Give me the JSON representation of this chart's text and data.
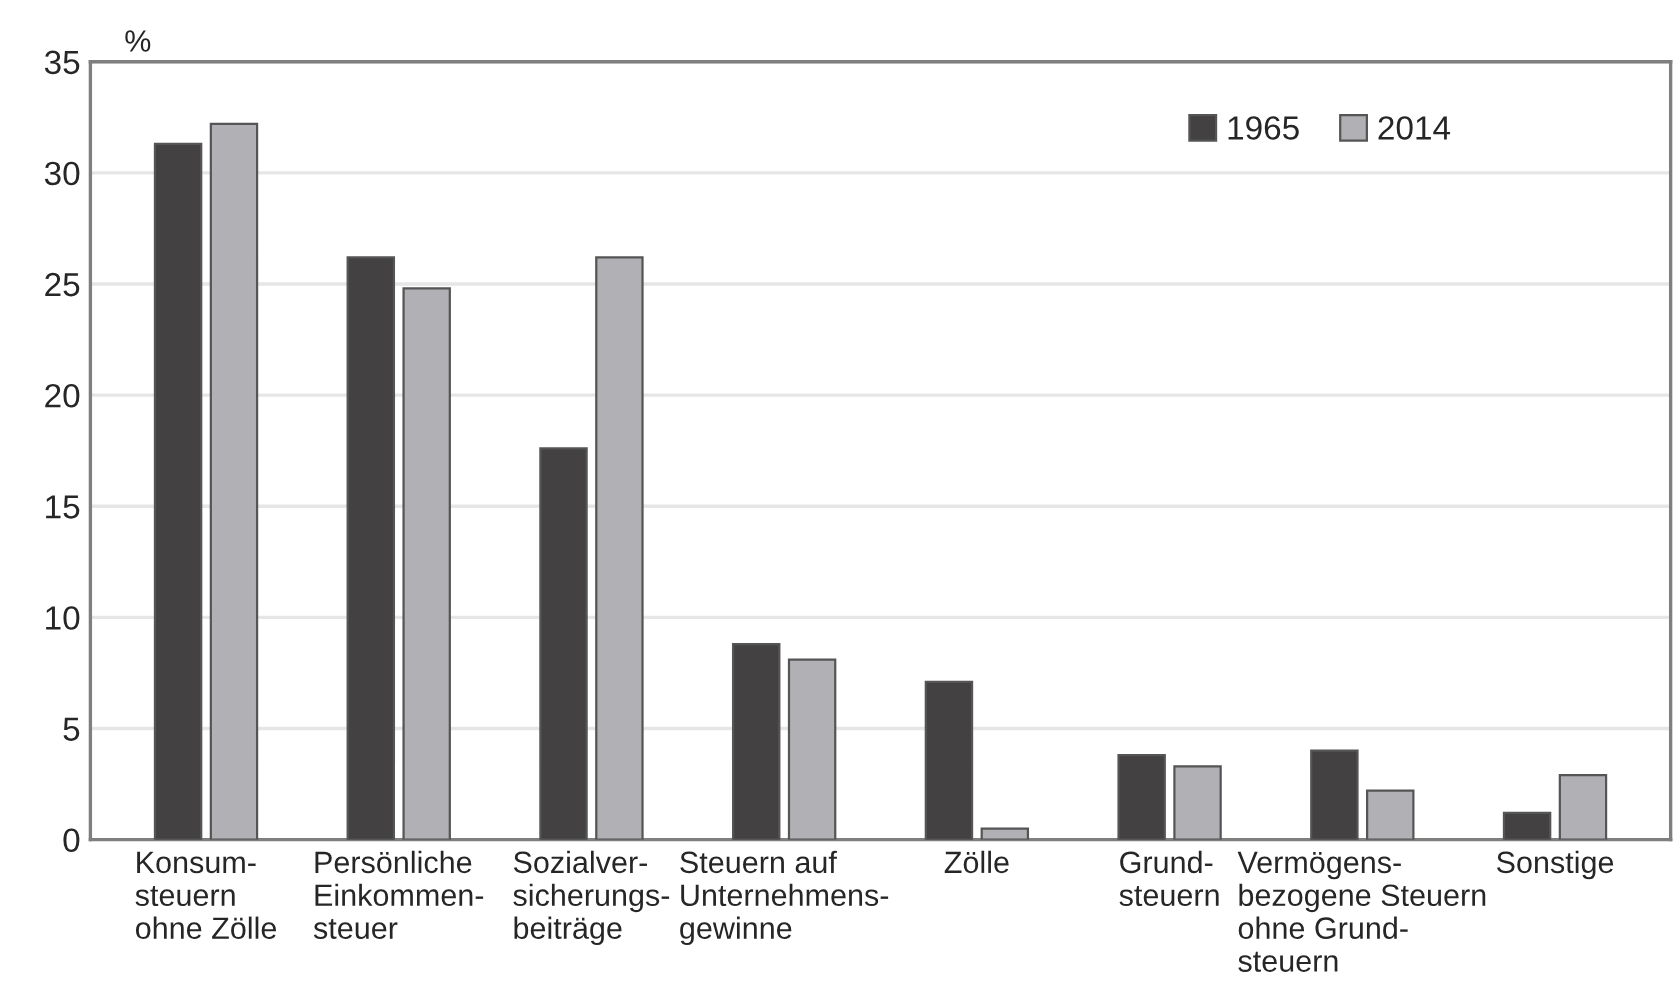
{
  "chart_data": {
    "type": "bar",
    "ylabel": "%",
    "categories": [
      "Konsum-\nsteuern\nohne Zölle",
      "Persönliche\nEinkommen-\nsteuer",
      "Sozialver-\nsicherungs-\nbeiträge",
      "Steuern auf\nUnternehmens-\ngewinne",
      "Zölle",
      "Grund-\nsteuern",
      "Vermögens-\nbezogene Steuern\nohne Grund-\nsteuern",
      "Sonstige"
    ],
    "series": [
      {
        "name": "1965",
        "color": "#434142",
        "values": [
          31.3,
          26.2,
          17.6,
          8.8,
          7.1,
          3.8,
          4.0,
          1.2
        ]
      },
      {
        "name": "2014",
        "color": "#b1b1b5",
        "values": [
          32.2,
          24.8,
          26.2,
          8.1,
          0.5,
          3.3,
          2.2,
          2.9
        ]
      }
    ],
    "ylim": [
      0,
      35
    ],
    "yticks": [
      0,
      5,
      10,
      15,
      20,
      25,
      30,
      35
    ],
    "grid": "y",
    "legend": "top right"
  }
}
